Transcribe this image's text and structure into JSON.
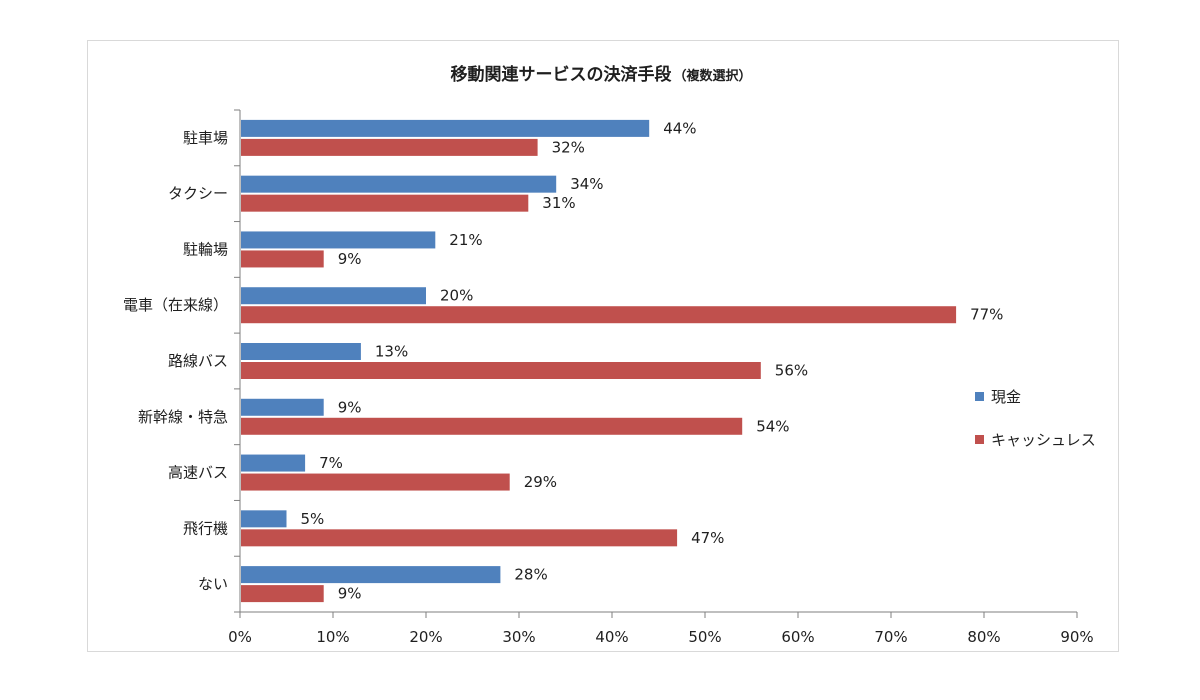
{
  "chart_data": {
    "type": "bar",
    "orientation": "horizontal",
    "title": "移動関連サービスの決済手段",
    "subtitle": "（複数選択）",
    "categories": [
      "駐車場",
      "タクシー",
      "駐輪場",
      "電車（在来線）",
      "路線バス",
      "新幹線・特急",
      "高速バス",
      "飛行機",
      "ない"
    ],
    "series": [
      {
        "name": "現金",
        "color": "#4f81bd",
        "values": [
          44,
          34,
          21,
          20,
          13,
          9,
          7,
          5,
          28
        ]
      },
      {
        "name": "キャッシュレス",
        "color": "#c0504d",
        "values": [
          32,
          31,
          9,
          77,
          56,
          54,
          29,
          47,
          9
        ]
      }
    ],
    "value_suffix": "%",
    "xlim": [
      0,
      90
    ],
    "xticks": [
      "0%",
      "10%",
      "20%",
      "30%",
      "40%",
      "50%",
      "60%",
      "70%",
      "80%",
      "90%"
    ],
    "grid": false,
    "legend_position": "right"
  }
}
